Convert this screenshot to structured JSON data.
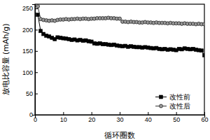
{
  "chart_data": {
    "type": "line",
    "x_label": "循环圈数",
    "y_label": "放电比容量 (mAh/g)",
    "x": [
      1,
      2,
      3,
      4,
      5,
      6,
      7,
      8,
      9,
      10,
      11,
      12,
      13,
      14,
      15,
      16,
      17,
      18,
      19,
      20,
      21,
      22,
      23,
      24,
      25,
      26,
      27,
      28,
      29,
      30,
      31,
      32,
      33,
      34,
      35,
      36,
      37,
      38,
      39,
      40,
      41,
      42,
      43,
      44,
      45,
      46,
      47,
      48,
      49,
      50,
      51,
      52,
      53,
      54,
      55,
      56,
      57,
      58,
      59,
      60
    ],
    "series": [
      {
        "name": "改性前",
        "color": "#000000",
        "marker": "square",
        "values": [
          235,
          197,
          190,
          186,
          184,
          181,
          178,
          182,
          181,
          180,
          179,
          178,
          176,
          177,
          175,
          176,
          174,
          175,
          173,
          172,
          168,
          167,
          168,
          166,
          166,
          165,
          164,
          165,
          163,
          162,
          161,
          162,
          160,
          161,
          160,
          159,
          159,
          158,
          159,
          158,
          157,
          156,
          157,
          155,
          154,
          155,
          153,
          154,
          153,
          152,
          155,
          154,
          156,
          155,
          154,
          155,
          153,
          152,
          151,
          140
        ]
      },
      {
        "name": "改性后",
        "color": "#9a9a9a",
        "marker": "circle",
        "values": [
          255,
          225,
          223,
          222,
          221,
          222,
          221,
          223,
          224,
          224,
          225,
          224,
          225,
          225,
          226,
          225,
          226,
          226,
          225,
          226,
          226,
          227,
          227,
          227,
          227,
          228,
          227,
          227,
          226,
          226,
          219,
          219,
          218,
          219,
          218,
          218,
          217,
          217,
          218,
          217,
          217,
          216,
          217,
          216,
          216,
          216,
          215,
          216,
          215,
          215,
          215,
          214,
          215,
          214,
          214,
          214,
          213,
          214,
          213,
          213
        ]
      }
    ],
    "xlim": [
      0,
      60
    ],
    "xticks": [
      0,
      10,
      20,
      30,
      40,
      50,
      60
    ],
    "ylim": [
      0,
      260
    ],
    "yticks": [
      0,
      50,
      100,
      150,
      200,
      250
    ],
    "legend": "lower right"
  }
}
